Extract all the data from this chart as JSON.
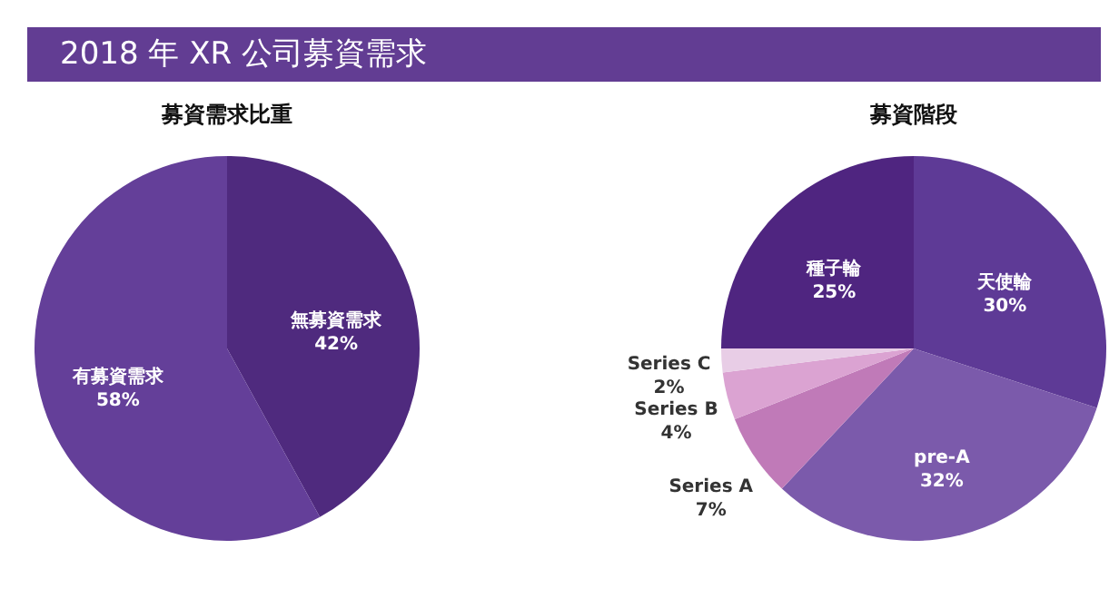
{
  "chart_data": [
    {
      "type": "pie",
      "title": "2018 年 XR 公司募資需求",
      "subtitle": "募資需求比重",
      "categories": [
        "無募資需求",
        "有募資需求"
      ],
      "values": [
        42,
        58
      ],
      "colors": [
        "#4f2a7e",
        "#643f99"
      ],
      "value_labels": [
        "42%",
        "58%"
      ]
    },
    {
      "type": "pie",
      "title": "募資階段",
      "categories": [
        "天使輪",
        "pre-A",
        "Series A",
        "Series B",
        "Series C",
        "種子輪"
      ],
      "values": [
        30,
        32,
        7,
        4,
        2,
        25
      ],
      "colors": [
        "#5e3a96",
        "#7b5aab",
        "#c07ab8",
        "#dba3d2",
        "#e8cde6",
        "#4f2580"
      ],
      "value_labels": [
        "30%",
        "32%",
        "7%",
        "4%",
        "2%",
        "25%"
      ]
    }
  ]
}
